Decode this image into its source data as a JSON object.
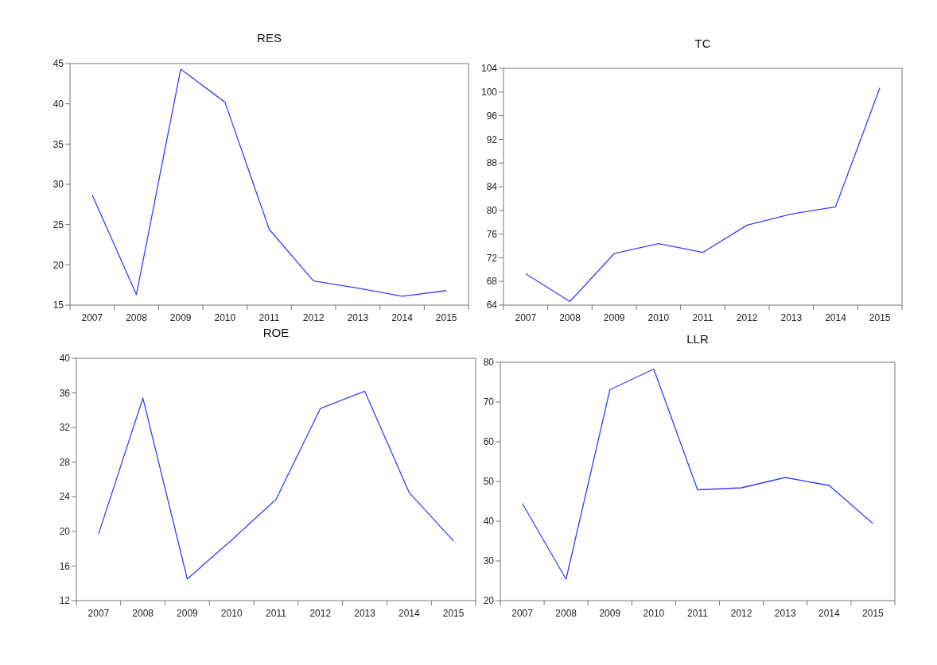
{
  "chart_data": [
    {
      "type": "line",
      "title": "RES",
      "categories": [
        "2007",
        "2008",
        "2009",
        "2010",
        "2011",
        "2012",
        "2013",
        "2014",
        "2015"
      ],
      "series": [
        {
          "color": "#3c3cff",
          "values": [
            28.7,
            16.3,
            44.3,
            40.2,
            24.4,
            18.0,
            17.1,
            16.1,
            16.8
          ]
        }
      ],
      "ylim": [
        15,
        45
      ],
      "yticks": [
        15,
        20,
        25,
        30,
        35,
        40,
        45
      ]
    },
    {
      "type": "line",
      "title": "TC",
      "categories": [
        "2007",
        "2008",
        "2009",
        "2010",
        "2011",
        "2012",
        "2013",
        "2014",
        "2015"
      ],
      "series": [
        {
          "color": "#3c3cff",
          "values": [
            69.3,
            64.6,
            72.7,
            74.4,
            72.9,
            77.5,
            79.4,
            80.6,
            100.7
          ]
        }
      ],
      "ylim": [
        64,
        104
      ],
      "yticks": [
        64,
        68,
        72,
        76,
        80,
        84,
        88,
        92,
        96,
        100,
        104
      ]
    },
    {
      "type": "line",
      "title": "ROE",
      "categories": [
        "2007",
        "2008",
        "2009",
        "2010",
        "2011",
        "2012",
        "2013",
        "2014",
        "2015"
      ],
      "series": [
        {
          "color": "#3c3cff",
          "values": [
            19.7,
            35.4,
            14.5,
            19.0,
            23.7,
            34.2,
            36.2,
            24.5,
            18.9
          ]
        }
      ],
      "ylim": [
        12,
        40
      ],
      "yticks": [
        12,
        16,
        20,
        24,
        28,
        32,
        36,
        40
      ]
    },
    {
      "type": "line",
      "title": "LLR",
      "categories": [
        "2007",
        "2008",
        "2009",
        "2010",
        "2011",
        "2012",
        "2013",
        "2014",
        "2015"
      ],
      "series": [
        {
          "color": "#3c3cff",
          "values": [
            44.5,
            25.4,
            73.1,
            78.3,
            47.9,
            48.4,
            51.0,
            49.0,
            39.4
          ]
        }
      ],
      "ylim": [
        20,
        80
      ],
      "yticks": [
        20,
        30,
        40,
        50,
        60,
        70,
        80
      ]
    }
  ]
}
